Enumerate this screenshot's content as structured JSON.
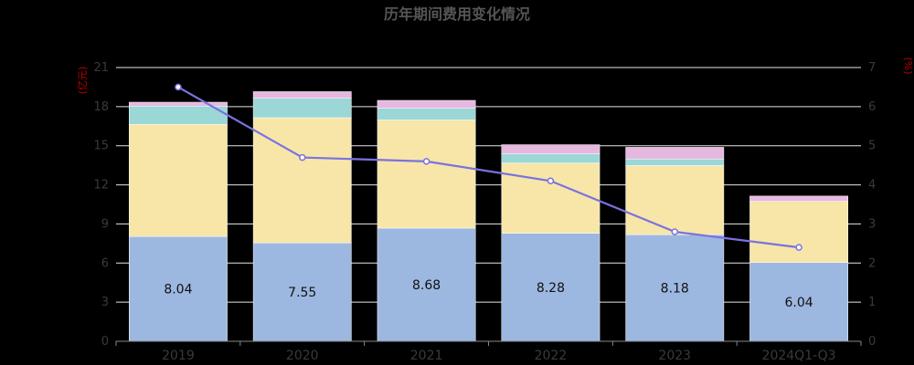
{
  "chart_data": {
    "type": "bar",
    "stacked": true,
    "title": "历年期间费用变化情况",
    "left_axis": {
      "unit": "(亿元)",
      "ylim": [
        0,
        21
      ],
      "ticks": [
        "0",
        "3",
        "6",
        "9",
        "12",
        "15",
        "18",
        "21"
      ]
    },
    "right_axis": {
      "unit": "(%)",
      "ylim": [
        0,
        7
      ],
      "ticks": [
        "0",
        "1",
        "2",
        "3",
        "4",
        "5",
        "6",
        "7"
      ]
    },
    "grid": true,
    "categories": [
      "2019",
      "2020",
      "2021",
      "2022",
      "2023",
      "2024Q1-Q3"
    ],
    "series": [
      {
        "kind": "bar",
        "axis": "left",
        "color": "#9db8e0",
        "values": [
          8.04,
          7.55,
          8.68,
          8.28,
          8.18,
          6.04
        ],
        "labels": [
          "8.04",
          "7.55",
          "8.68",
          "8.28",
          "8.18",
          "6.04"
        ]
      },
      {
        "kind": "bar",
        "axis": "left",
        "color": "#f7e6a8",
        "values": [
          8.6,
          9.6,
          8.3,
          5.4,
          5.3,
          4.7
        ]
      },
      {
        "kind": "bar",
        "axis": "left",
        "color": "#9bd7d6",
        "values": [
          1.4,
          1.5,
          0.9,
          0.7,
          0.5,
          0.0
        ]
      },
      {
        "kind": "bar",
        "axis": "left",
        "color": "#e6b8e0",
        "values": [
          0.3,
          0.5,
          0.6,
          0.7,
          0.9,
          0.4
        ]
      },
      {
        "kind": "line",
        "axis": "right",
        "color": "#7b72e0",
        "values": [
          6.5,
          4.7,
          4.6,
          4.1,
          2.8,
          2.4
        ]
      }
    ]
  }
}
